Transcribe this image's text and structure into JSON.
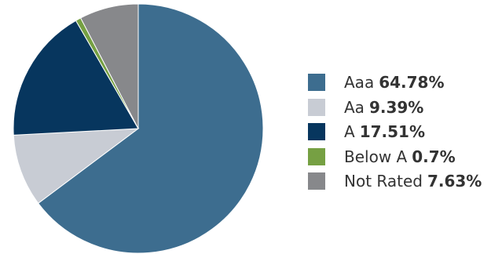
{
  "chart_data": {
    "type": "pie",
    "title": "",
    "legend_position": "right",
    "slices": [
      {
        "label": "Aaa",
        "display": "64.78%",
        "value": 64.78,
        "color": "#3d6d8f"
      },
      {
        "label": "Aa",
        "display": "9.39%",
        "value": 9.39,
        "color": "#c8ccd4"
      },
      {
        "label": "A",
        "display": "17.51%",
        "value": 17.51,
        "color": "#07365e"
      },
      {
        "label": "Below A",
        "display": "0.7%",
        "value": 0.7,
        "color": "#76a043"
      },
      {
        "label": "Not Rated",
        "display": "7.63%",
        "value": 7.63,
        "color": "#87888b"
      }
    ]
  }
}
